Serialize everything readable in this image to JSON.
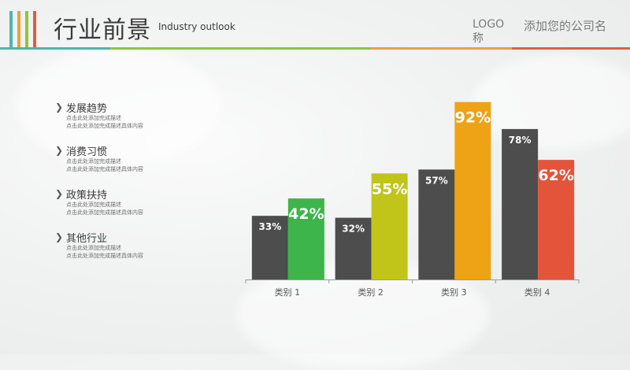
{
  "header": {
    "title": "行业前景",
    "subtitle": "Industry outlook",
    "logo": "LOGO 称",
    "company": "添加您的公司名"
  },
  "colors": {
    "stripe1": "#4db6ac",
    "stripe2": "#e8a33a",
    "stripe3": "#8dc63f",
    "stripe4": "#e35b3f",
    "dark_bar": "#4d4d4d",
    "cat1": "#3db54a",
    "cat2": "#c1c51a",
    "cat3": "#eea216",
    "cat4": "#e4543a"
  },
  "list": [
    {
      "title": "发展趋势",
      "desc1": "点击此处添加完成描述",
      "desc2": "点击此处添加完成描述具体内容"
    },
    {
      "title": "消费习惯",
      "desc1": "点击此处添加完成描述",
      "desc2": "点击此处添加完成描述具体内容"
    },
    {
      "title": "政策扶持",
      "desc1": "点击此处添加完成描述",
      "desc2": "点击此处添加完成描述具体内容"
    },
    {
      "title": "其他行业",
      "desc1": "点击此处添加完成描述",
      "desc2": "点击此处添加完成描述具体内容"
    }
  ],
  "chart_data": {
    "type": "bar",
    "categories": [
      "类别 1",
      "类别 2",
      "类别 3",
      "类别 4"
    ],
    "series": [
      {
        "values": [
          33,
          32,
          57,
          78
        ],
        "labels": [
          "33%",
          "32%",
          "57%",
          "78%"
        ]
      },
      {
        "values": [
          42,
          55,
          92,
          62
        ],
        "labels": [
          "42%",
          "55%",
          "92%",
          "62%"
        ]
      }
    ],
    "ylim": [
      0,
      100
    ],
    "grid": false,
    "legend": "none"
  }
}
